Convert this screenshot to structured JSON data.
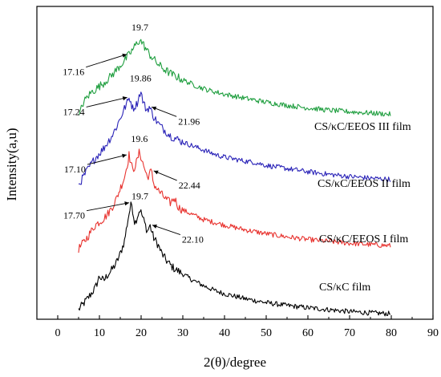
{
  "chart_data": {
    "type": "line",
    "title": "",
    "xlabel": "2(θ)/degree",
    "ylabel": "Intensity(a,u)",
    "xlim": [
      -5,
      90
    ],
    "xticks": [
      0,
      10,
      20,
      30,
      40,
      50,
      60,
      70,
      80,
      90
    ],
    "xtick_labels": [
      "0",
      "10",
      "20",
      "30",
      "40",
      "50",
      "60",
      "70",
      "80",
      "90"
    ],
    "yticks_shown": false,
    "grid": false,
    "legend": "none",
    "series": [
      {
        "name": "CS/κC film",
        "color": "#000000",
        "offset": 0,
        "points": [
          [
            5,
            0.3
          ],
          [
            7,
            0.62
          ],
          [
            9,
            0.98
          ],
          [
            10,
            1.35
          ],
          [
            11,
            1.2
          ],
          [
            12,
            1.4
          ],
          [
            13,
            1.55
          ],
          [
            14,
            1.75
          ],
          [
            15,
            2.05
          ],
          [
            16,
            2.45
          ],
          [
            17,
            3.25
          ],
          [
            17.7,
            3.65
          ],
          [
            18.5,
            3.0
          ],
          [
            19.7,
            3.45
          ],
          [
            20.5,
            3.15
          ],
          [
            21.5,
            2.75
          ],
          [
            22.1,
            2.95
          ],
          [
            23,
            2.55
          ],
          [
            24,
            2.35
          ],
          [
            25,
            2.05
          ],
          [
            26,
            1.85
          ],
          [
            27,
            1.7
          ],
          [
            28,
            1.58
          ],
          [
            30,
            1.42
          ],
          [
            32,
            1.25
          ],
          [
            35,
            1.05
          ],
          [
            38,
            0.88
          ],
          [
            40,
            0.8
          ],
          [
            45,
            0.64
          ],
          [
            50,
            0.52
          ],
          [
            55,
            0.43
          ],
          [
            60,
            0.36
          ],
          [
            65,
            0.3
          ],
          [
            70,
            0.24
          ],
          [
            75,
            0.2
          ],
          [
            80,
            0.17
          ]
        ],
        "peaks": [
          {
            "x": 17.7,
            "label": "17.70"
          },
          {
            "x": 19.7,
            "label": "19.7"
          },
          {
            "x": 22.1,
            "label": "22.10"
          }
        ]
      },
      {
        "name": "CS/κC/EEOS I film",
        "color": "#e8322e",
        "offset": 2.1,
        "points": [
          [
            5,
            0.1
          ],
          [
            7,
            0.45
          ],
          [
            9,
            0.85
          ],
          [
            10,
            0.95
          ],
          [
            11,
            1.05
          ],
          [
            12,
            1.2
          ],
          [
            13,
            1.4
          ],
          [
            14,
            1.65
          ],
          [
            15,
            2.0
          ],
          [
            16,
            2.35
          ],
          [
            17,
            2.95
          ],
          [
            17.1,
            3.05
          ],
          [
            18,
            2.55
          ],
          [
            19,
            2.85
          ],
          [
            19.6,
            3.15
          ],
          [
            20.5,
            2.75
          ],
          [
            21.5,
            2.35
          ],
          [
            22.44,
            2.55
          ],
          [
            23,
            2.15
          ],
          [
            24,
            1.95
          ],
          [
            25,
            1.8
          ],
          [
            26,
            1.65
          ],
          [
            27,
            1.55
          ],
          [
            28,
            1.7
          ],
          [
            29,
            1.4
          ],
          [
            30,
            1.32
          ],
          [
            32,
            1.2
          ],
          [
            35,
            1.02
          ],
          [
            38,
            0.92
          ],
          [
            40,
            0.85
          ],
          [
            45,
            0.7
          ],
          [
            50,
            0.58
          ],
          [
            55,
            0.48
          ],
          [
            60,
            0.4
          ],
          [
            65,
            0.34
          ],
          [
            70,
            0.28
          ],
          [
            75,
            0.24
          ],
          [
            80,
            0.2
          ]
        ],
        "peaks": [
          {
            "x": 17.1,
            "label": "17.10"
          },
          {
            "x": 19.6,
            "label": "19.6"
          },
          {
            "x": 22.44,
            "label": "22.44"
          }
        ]
      },
      {
        "name": "CS/κC/EEOS II film",
        "color": "#2b24b8",
        "offset": 4.1,
        "points": [
          [
            5,
            0.1
          ],
          [
            7,
            0.55
          ],
          [
            9,
            0.95
          ],
          [
            10,
            1.1
          ],
          [
            11,
            1.25
          ],
          [
            12,
            1.45
          ],
          [
            13,
            1.65
          ],
          [
            14,
            1.9
          ],
          [
            15,
            2.2
          ],
          [
            16,
            2.5
          ],
          [
            17.24,
            2.85
          ],
          [
            18,
            2.5
          ],
          [
            19,
            2.65
          ],
          [
            19.86,
            3.05
          ],
          [
            20.5,
            2.7
          ],
          [
            21.3,
            2.45
          ],
          [
            21.96,
            2.55
          ],
          [
            23,
            2.25
          ],
          [
            24,
            2.05
          ],
          [
            25,
            1.9
          ],
          [
            26,
            1.78
          ],
          [
            27,
            1.65
          ],
          [
            28,
            1.58
          ],
          [
            30,
            1.45
          ],
          [
            32,
            1.35
          ],
          [
            35,
            1.2
          ],
          [
            38,
            1.05
          ],
          [
            40,
            0.98
          ],
          [
            45,
            0.85
          ],
          [
            47,
            0.82
          ],
          [
            50,
            0.72
          ],
          [
            55,
            0.62
          ],
          [
            60,
            0.52
          ],
          [
            65,
            0.44
          ],
          [
            70,
            0.37
          ],
          [
            75,
            0.32
          ],
          [
            80,
            0.28
          ]
        ],
        "peaks": [
          {
            "x": 17.24,
            "label": "17.24"
          },
          {
            "x": 19.86,
            "label": "19.86"
          },
          {
            "x": 21.96,
            "label": "21.96"
          }
        ]
      },
      {
        "name": "CS/κC/EEOS III film",
        "color": "#1e9e3e",
        "offset": 6.2,
        "points": [
          [
            5,
            0.1
          ],
          [
            6,
            0.55
          ],
          [
            7,
            0.75
          ],
          [
            8,
            0.9
          ],
          [
            9,
            1.0
          ],
          [
            10,
            1.1
          ],
          [
            11,
            1.2
          ],
          [
            12,
            1.32
          ],
          [
            13,
            1.45
          ],
          [
            14,
            1.6
          ],
          [
            15,
            1.75
          ],
          [
            16,
            1.9
          ],
          [
            17.16,
            2.1
          ],
          [
            18,
            2.25
          ],
          [
            19,
            2.45
          ],
          [
            19.7,
            2.55
          ],
          [
            20.5,
            2.42
          ],
          [
            21,
            2.3
          ],
          [
            22,
            2.1
          ],
          [
            23,
            1.95
          ],
          [
            24,
            1.8
          ],
          [
            25,
            1.68
          ],
          [
            27,
            1.5
          ],
          [
            30,
            1.3
          ],
          [
            33,
            1.12
          ],
          [
            36,
            0.98
          ],
          [
            40,
            0.85
          ],
          [
            45,
            0.72
          ],
          [
            50,
            0.6
          ],
          [
            55,
            0.5
          ],
          [
            60,
            0.42
          ],
          [
            65,
            0.35
          ],
          [
            70,
            0.3
          ],
          [
            75,
            0.26
          ],
          [
            80,
            0.22
          ]
        ],
        "peaks": [
          {
            "x": 17.16,
            "label": "17.16"
          },
          {
            "x": 19.7,
            "label": "19.7"
          }
        ]
      }
    ]
  }
}
